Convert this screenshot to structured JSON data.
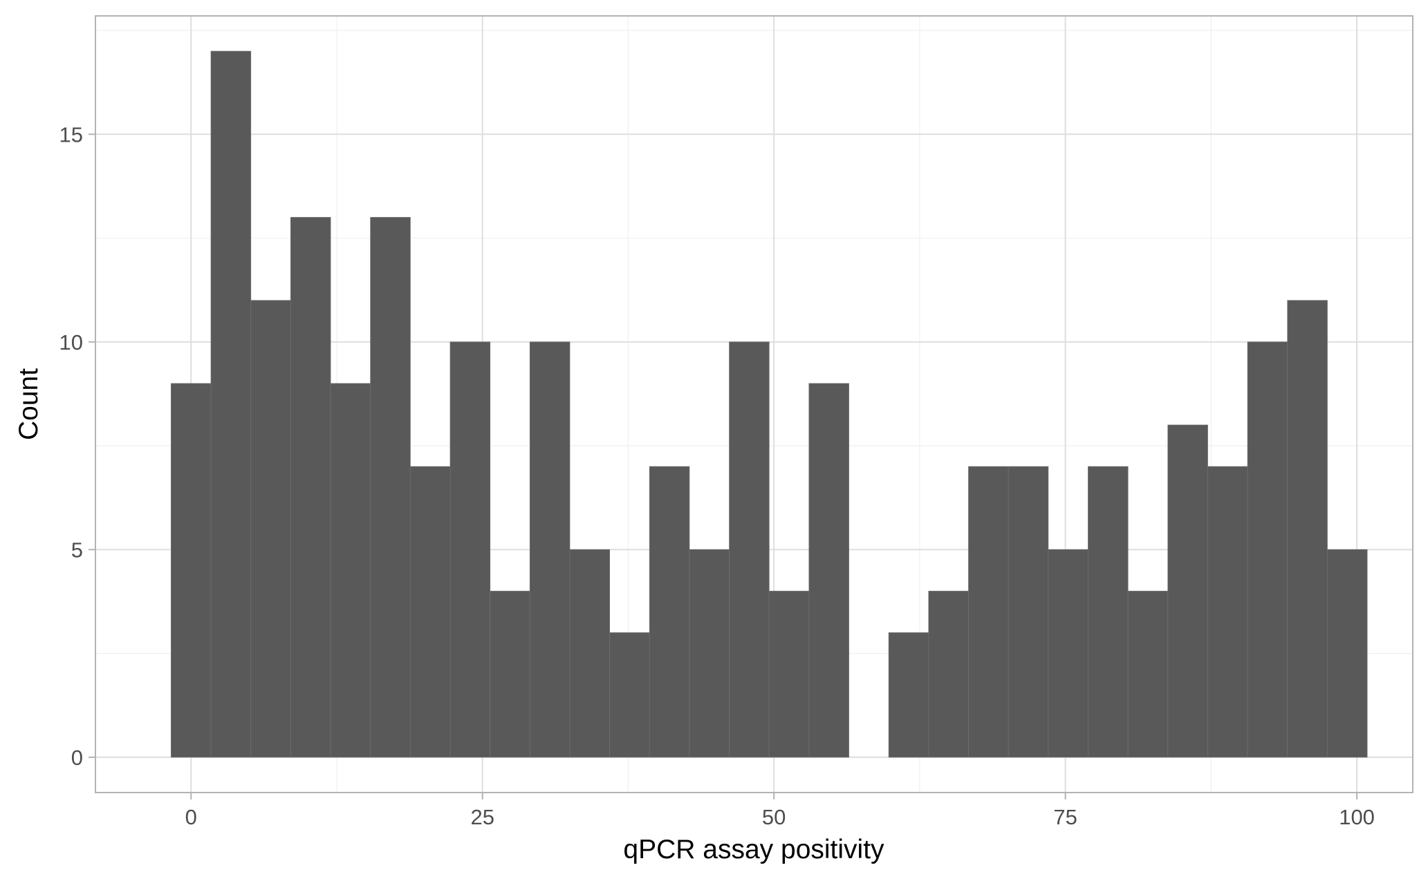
{
  "chart_data": {
    "type": "bar",
    "title": "",
    "xlabel": "qPCR assay positivity",
    "ylabel": "Count",
    "xlim": [
      -8.2,
      104.8
    ],
    "ylim": [
      -0.85,
      17.85
    ],
    "x_ticks": [
      0,
      25,
      50,
      75,
      100
    ],
    "x_tick_labels": [
      "0",
      "25",
      "50",
      "75",
      "100"
    ],
    "y_ticks": [
      0,
      5,
      10,
      15
    ],
    "y_tick_labels": [
      "0",
      "5",
      "10",
      "15"
    ],
    "grid": true,
    "bin_width": 3.42,
    "bins": [
      {
        "x": 0.0,
        "count": 9
      },
      {
        "x": 3.42,
        "count": 17
      },
      {
        "x": 6.84,
        "count": 11
      },
      {
        "x": 10.26,
        "count": 13
      },
      {
        "x": 13.68,
        "count": 9
      },
      {
        "x": 17.1,
        "count": 13
      },
      {
        "x": 20.52,
        "count": 7
      },
      {
        "x": 23.94,
        "count": 10
      },
      {
        "x": 27.36,
        "count": 4
      },
      {
        "x": 30.78,
        "count": 10
      },
      {
        "x": 34.2,
        "count": 5
      },
      {
        "x": 37.62,
        "count": 3
      },
      {
        "x": 41.04,
        "count": 7
      },
      {
        "x": 44.46,
        "count": 5
      },
      {
        "x": 47.88,
        "count": 10
      },
      {
        "x": 51.3,
        "count": 4
      },
      {
        "x": 54.72,
        "count": 9
      },
      {
        "x": 58.14,
        "count": 0
      },
      {
        "x": 61.56,
        "count": 3
      },
      {
        "x": 64.98,
        "count": 4
      },
      {
        "x": 68.4,
        "count": 7
      },
      {
        "x": 71.82,
        "count": 7
      },
      {
        "x": 75.24,
        "count": 5
      },
      {
        "x": 78.66,
        "count": 7
      },
      {
        "x": 82.08,
        "count": 4
      },
      {
        "x": 85.5,
        "count": 8
      },
      {
        "x": 88.92,
        "count": 7
      },
      {
        "x": 92.34,
        "count": 10
      },
      {
        "x": 95.76,
        "count": 11
      },
      {
        "x": 99.18,
        "count": 5
      }
    ],
    "colors": {
      "bar": "#595959",
      "bar_outline": "#6e6e6e",
      "panel_border": "#b3b3b3",
      "grid_major": "#dedede",
      "grid_minor": "#efefef",
      "tick_text": "#4d4d4d",
      "title_text": "#000000"
    }
  }
}
